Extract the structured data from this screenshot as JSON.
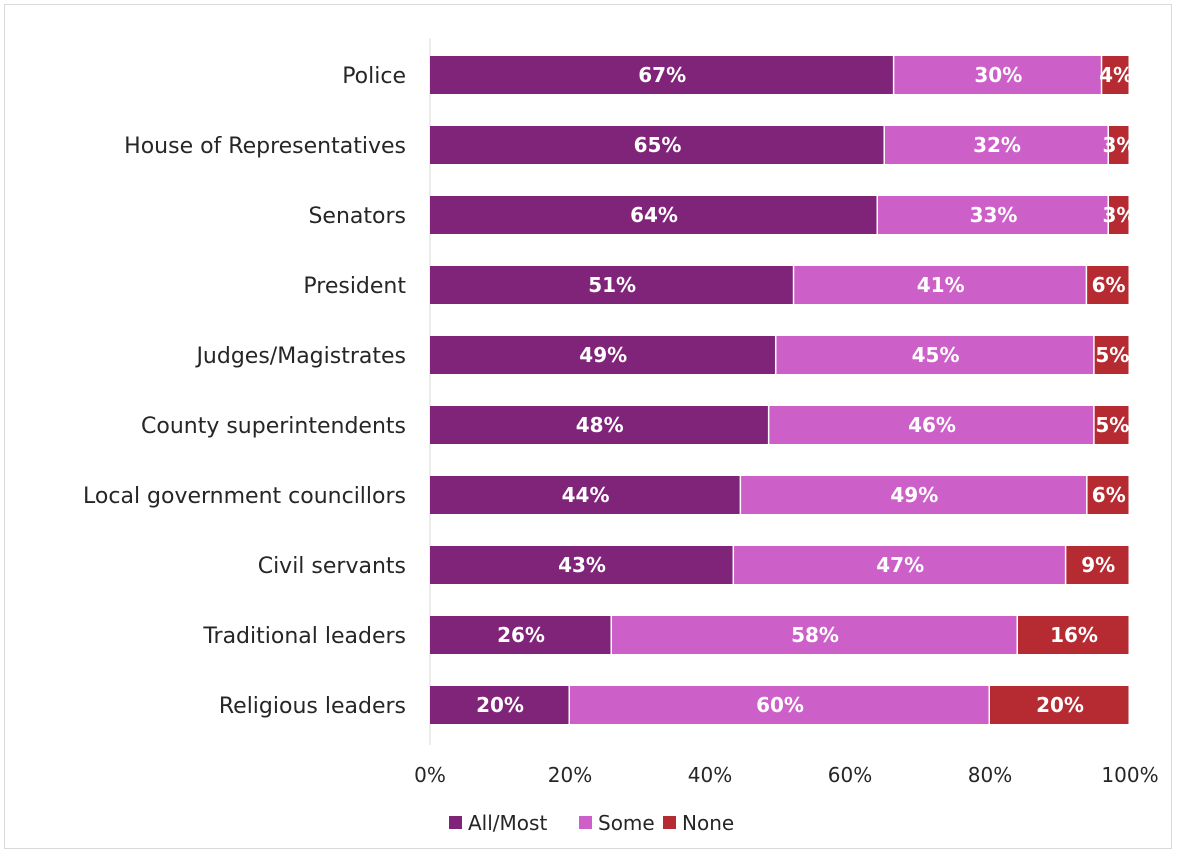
{
  "chart_data": {
    "type": "bar",
    "orientation": "horizontal",
    "stacked": true,
    "title": "",
    "xlabel": "",
    "ylabel": "",
    "xlim": [
      0,
      100
    ],
    "x_ticks": [
      "0%",
      "20%",
      "40%",
      "60%",
      "80%",
      "100%"
    ],
    "categories": [
      "Police",
      "House of Representatives",
      "Senators",
      "President",
      "Judges/Magistrates",
      "County superintendents",
      "Local government councillors",
      "Civil servants",
      "Traditional leaders",
      "Religious leaders"
    ],
    "series": [
      {
        "name": "All/Most",
        "color": "#7f2478",
        "values": [
          67,
          65,
          64,
          51,
          49,
          48,
          44,
          43,
          26,
          20
        ],
        "labels": [
          "67%",
          "65%",
          "64%",
          "51%",
          "49%",
          "48%",
          "44%",
          "43%",
          "26%",
          "20%"
        ]
      },
      {
        "name": "Some",
        "color": "#cd5fc8",
        "values": [
          30,
          32,
          33,
          41,
          45,
          46,
          49,
          47,
          58,
          60
        ],
        "labels": [
          "30%",
          "32%",
          "33%",
          "41%",
          "45%",
          "46%",
          "49%",
          "47%",
          "58%",
          "60%"
        ]
      },
      {
        "name": "None",
        "color": "#b52b31",
        "values": [
          4,
          3,
          3,
          6,
          5,
          5,
          6,
          9,
          16,
          20
        ],
        "labels": [
          "4%",
          "3%",
          "3%",
          "6%",
          "5%",
          "5%",
          "6%",
          "9%",
          "16%",
          "20%"
        ]
      }
    ],
    "legend": "bottom",
    "grid": false
  }
}
